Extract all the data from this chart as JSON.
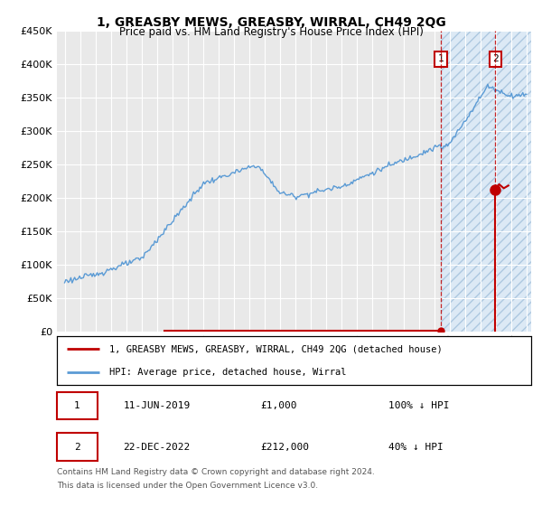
{
  "title": "1, GREASBY MEWS, GREASBY, WIRRAL, CH49 2QG",
  "subtitle": "Price paid vs. HM Land Registry's House Price Index (HPI)",
  "ylim": [
    0,
    450000
  ],
  "yticks": [
    0,
    50000,
    100000,
    150000,
    200000,
    250000,
    300000,
    350000,
    400000,
    450000
  ],
  "ytick_labels": [
    "£0",
    "£50K",
    "£100K",
    "£150K",
    "£200K",
    "£250K",
    "£300K",
    "£350K",
    "£400K",
    "£450K"
  ],
  "hpi_color": "#5b9bd5",
  "price_color": "#c00000",
  "bg_future_color": "#dce9f5",
  "plot_bg_color": "#e9e9e9",
  "grid_color": "#ffffff",
  "transaction1_year": 2019.44,
  "transaction1_price": 1000,
  "transaction2_year": 2022.97,
  "transaction2_price": 212000,
  "legend_line1": "1, GREASBY MEWS, GREASBY, WIRRAL, CH49 2QG (detached house)",
  "legend_line2": "HPI: Average price, detached house, Wirral",
  "table_row1_label": "1",
  "table_row1_date": "11-JUN-2019",
  "table_row1_price": "£1,000",
  "table_row1_hpi": "100% ↓ HPI",
  "table_row2_label": "2",
  "table_row2_date": "22-DEC-2022",
  "table_row2_price": "£212,000",
  "table_row2_hpi": "40% ↓ HPI",
  "footnote1": "Contains HM Land Registry data © Crown copyright and database right 2024.",
  "footnote2": "This data is licensed under the Open Government Licence v3.0.",
  "xmin": 1994.5,
  "xmax": 2025.3,
  "red_line_start": 2001.5
}
